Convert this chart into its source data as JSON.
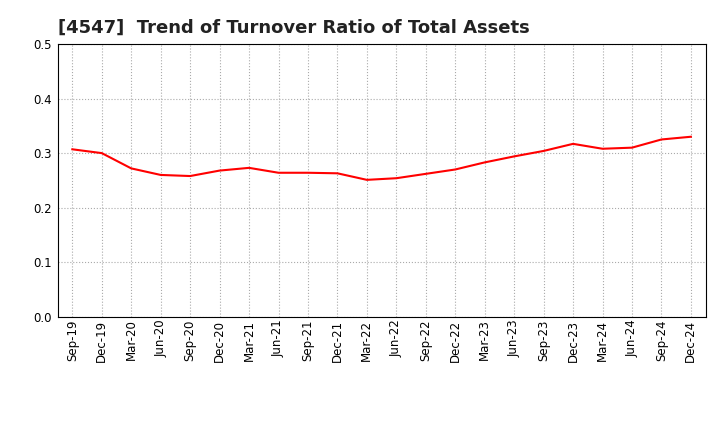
{
  "title": "[4547]  Trend of Turnover Ratio of Total Assets",
  "x_labels": [
    "Sep-19",
    "Dec-19",
    "Mar-20",
    "Jun-20",
    "Sep-20",
    "Dec-20",
    "Mar-21",
    "Jun-21",
    "Sep-21",
    "Dec-21",
    "Mar-22",
    "Jun-22",
    "Sep-22",
    "Dec-22",
    "Mar-23",
    "Jun-23",
    "Sep-23",
    "Dec-23",
    "Mar-24",
    "Jun-24",
    "Sep-24",
    "Dec-24"
  ],
  "y_values": [
    0.307,
    0.3,
    0.272,
    0.26,
    0.258,
    0.268,
    0.273,
    0.264,
    0.264,
    0.263,
    0.251,
    0.254,
    0.262,
    0.27,
    0.283,
    0.294,
    0.304,
    0.317,
    0.308,
    0.31,
    0.325,
    0.33
  ],
  "line_color": "#ff0000",
  "line_width": 1.5,
  "ylim": [
    0.0,
    0.5
  ],
  "yticks": [
    0.0,
    0.1,
    0.2,
    0.3,
    0.4,
    0.5
  ],
  "grid_color": "#aaaaaa",
  "grid_style": "dotted",
  "background_color": "#ffffff",
  "title_fontsize": 13,
  "tick_fontsize": 8.5
}
